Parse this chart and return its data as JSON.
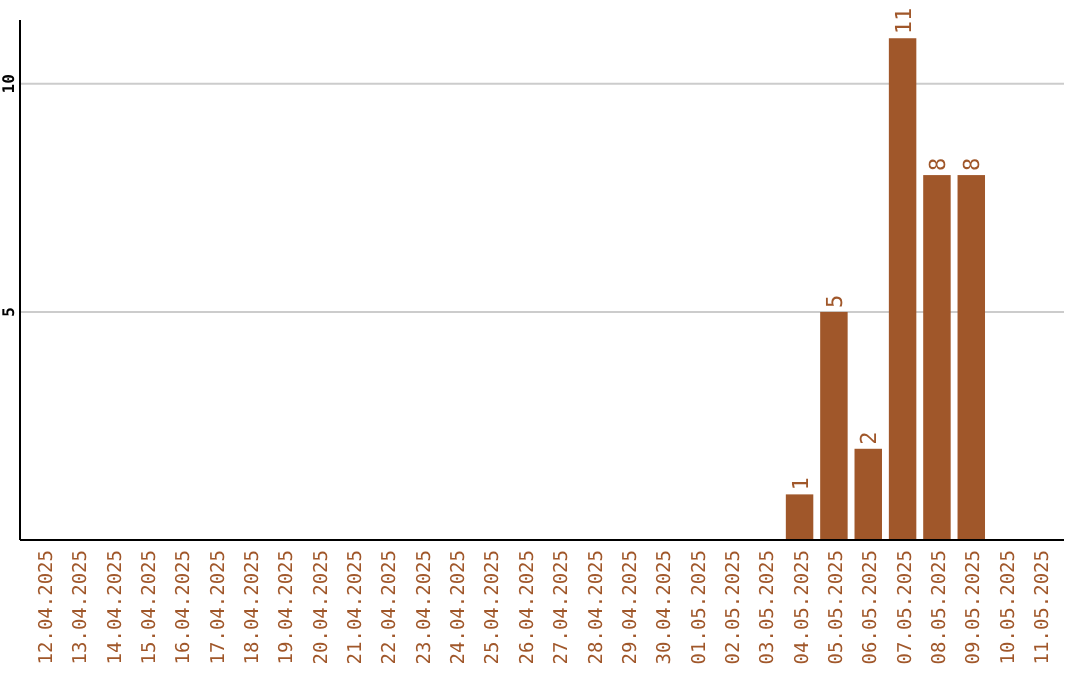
{
  "chart_data": {
    "type": "bar",
    "categories": [
      "12.04.2025",
      "13.04.2025",
      "14.04.2025",
      "15.04.2025",
      "16.04.2025",
      "17.04.2025",
      "18.04.2025",
      "19.04.2025",
      "20.04.2025",
      "21.04.2025",
      "22.04.2025",
      "23.04.2025",
      "24.04.2025",
      "25.04.2025",
      "26.04.2025",
      "27.04.2025",
      "28.04.2025",
      "29.04.2025",
      "30.04.2025",
      "01.05.2025",
      "02.05.2025",
      "03.05.2025",
      "04.05.2025",
      "05.05.2025",
      "06.05.2025",
      "07.05.2025",
      "08.05.2025",
      "09.05.2025",
      "10.05.2025",
      "11.05.2025"
    ],
    "values": [
      0,
      0,
      0,
      0,
      0,
      0,
      0,
      0,
      0,
      0,
      0,
      0,
      0,
      0,
      0,
      0,
      0,
      0,
      0,
      0,
      0,
      0,
      1,
      5,
      2,
      11,
      8,
      8,
      0,
      0
    ],
    "value_labels": [
      null,
      null,
      null,
      null,
      null,
      null,
      null,
      null,
      null,
      null,
      null,
      null,
      null,
      null,
      null,
      null,
      null,
      null,
      null,
      null,
      null,
      null,
      "1",
      "5",
      "2",
      "11",
      "8",
      "8",
      null,
      null
    ],
    "color": "#a0572a",
    "ylim": [
      0,
      11.4
    ],
    "yticks": [
      5,
      10
    ],
    "grid": "y"
  }
}
